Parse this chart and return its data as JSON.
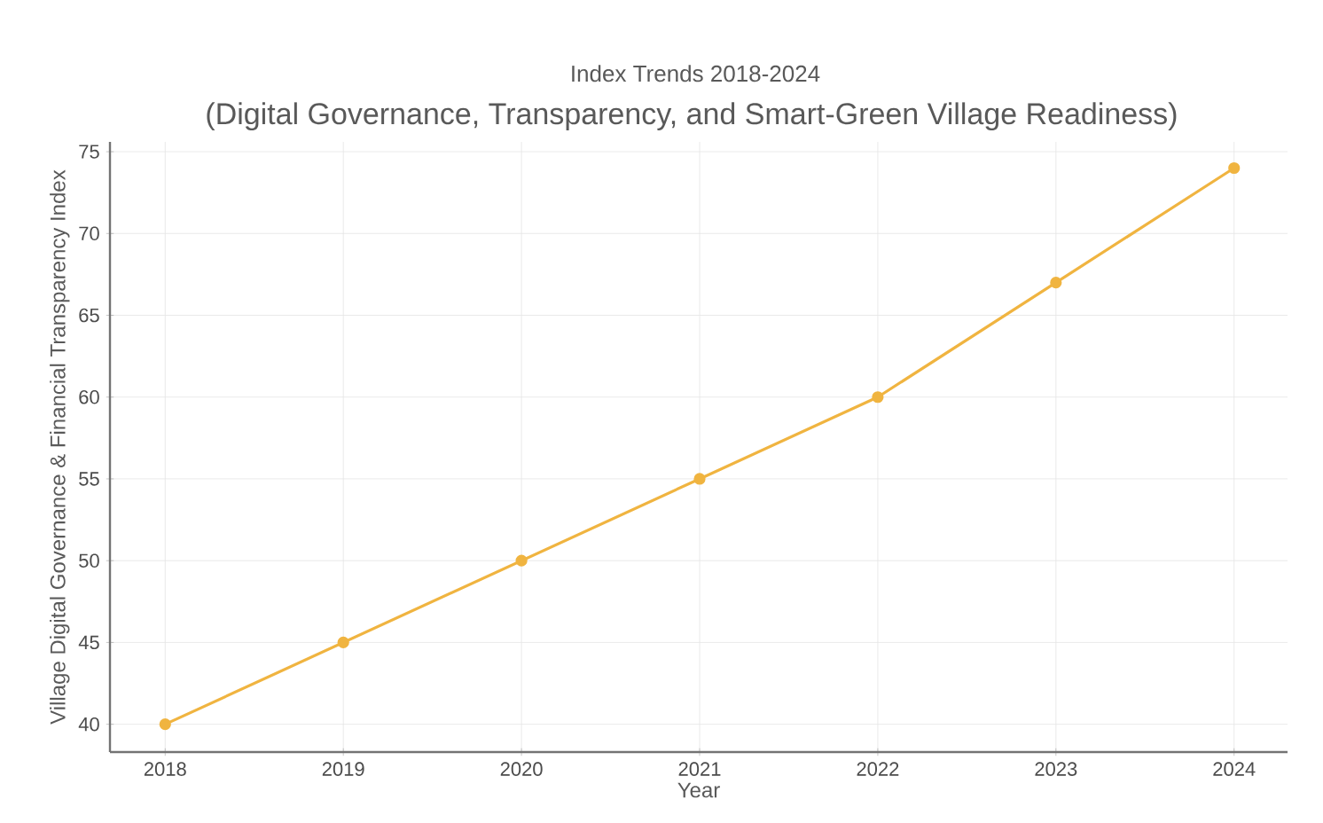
{
  "chart_data": {
    "type": "line",
    "title": "Index Trends 2018-2024",
    "subtitle": "(Digital Governance, Transparency, and Smart-Green Village Readiness)",
    "xlabel": "Year",
    "ylabel": "Village Digital Governance & Financial Transparency Index",
    "x": [
      2018,
      2019,
      2020,
      2021,
      2022,
      2023,
      2024
    ],
    "series": [
      {
        "color": "#f0b440",
        "values": [
          40,
          45,
          50,
          55,
          60,
          67,
          74
        ]
      }
    ],
    "xlim": [
      2017.69,
      2024.3
    ],
    "ylim": [
      38.3,
      75.6
    ],
    "xticks": [
      2018,
      2019,
      2020,
      2021,
      2022,
      2023,
      2024
    ],
    "yticks": [
      40,
      45,
      50,
      55,
      60,
      65,
      70,
      75
    ],
    "grid": true,
    "marker": "circle",
    "line_style": "solid"
  }
}
